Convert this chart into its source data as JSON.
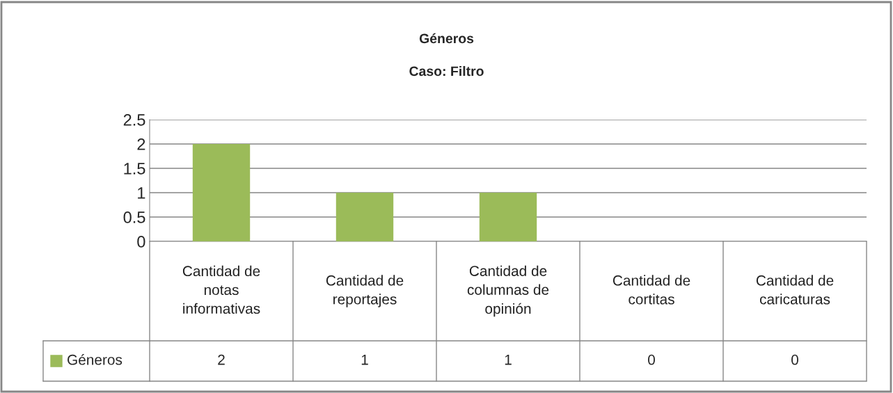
{
  "chart_data": {
    "type": "bar",
    "title": "Géneros",
    "subtitle": "Caso: Filtro",
    "categories": [
      "Cantidad de notas informativas",
      "Cantidad de reportajes",
      "Cantidad de columnas de opinión",
      "Cantidad de cortitas",
      "Cantidad de caricaturas"
    ],
    "series": [
      {
        "name": "Géneros",
        "color": "#9bbb59",
        "values": [
          2,
          1,
          1,
          0,
          0
        ]
      }
    ],
    "ylim": [
      0,
      2.5
    ],
    "yticks": [
      0,
      0.5,
      1,
      1.5,
      2,
      2.5
    ],
    "grid": "y",
    "legend": "bottom",
    "data_labels": true
  }
}
